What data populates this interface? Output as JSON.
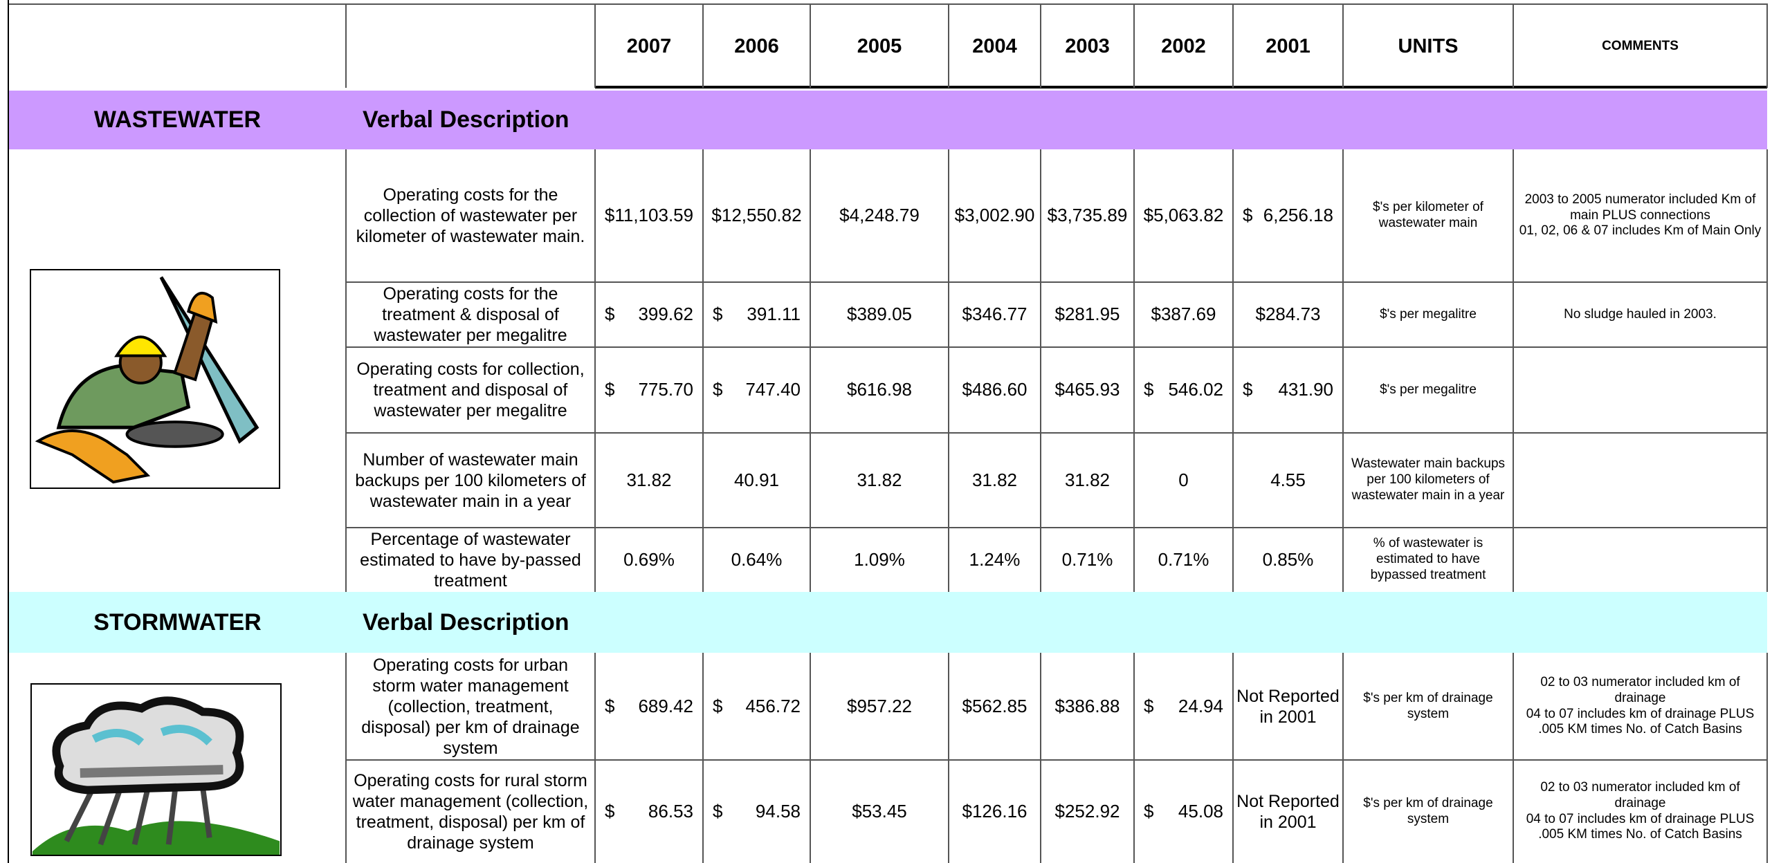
{
  "header": {
    "years": [
      "2007",
      "2006",
      "2005",
      "2004",
      "2003",
      "2002",
      "2001"
    ],
    "units": "UNITS",
    "comments": "COMMENTS"
  },
  "sections": [
    {
      "title": "WASTEWATER",
      "subtitle": "Verbal Description",
      "color": "#cc99ff",
      "rows": [
        {
          "description": "Operating costs for the collection of wastewater per kilometer of wastewater main.",
          "values": [
            "$11,103.59",
            "$12,550.82",
            "$4,248.79",
            "$3,002.90",
            "$3,735.89",
            "$5,063.82",
            {
              "symbol": "$",
              "amount": "6,256.18"
            }
          ],
          "units": "$'s per kilometer of wastewater main",
          "comments": "2003 to 2005 numerator included Km of main PLUS connections\n01, 02, 06 & 07 includes Km of Main Only"
        },
        {
          "description": "Operating costs for the treatment & disposal of wastewater per megalitre",
          "values": [
            {
              "symbol": "$",
              "amount": "399.62"
            },
            {
              "symbol": "$",
              "amount": "391.11"
            },
            "$389.05",
            "$346.77",
            "$281.95",
            "$387.69",
            "$284.73"
          ],
          "units": "$'s per megalitre",
          "comments": "No sludge hauled in 2003."
        },
        {
          "description": "Operating costs for collection, treatment and disposal of wastewater per megalitre",
          "values": [
            {
              "symbol": "$",
              "amount": "775.70"
            },
            {
              "symbol": "$",
              "amount": "747.40"
            },
            "$616.98",
            "$486.60",
            "$465.93",
            {
              "symbol": "$",
              "amount": "546.02"
            },
            {
              "symbol": "$",
              "amount": "431.90"
            }
          ],
          "units": "$'s per megalitre"
        },
        {
          "description": "Number of wastewater main backups per 100 kilometers of wastewater main in a year",
          "values": [
            31.82,
            40.91,
            31.82,
            31.82,
            31.82,
            0,
            4.55
          ],
          "units": "Wastewater main backups per 100 kilometers of wastewater main in a year"
        },
        {
          "description": "Percentage of wastewater estimated to have by-passed treatment",
          "values": [
            "0.69%",
            "0.64%",
            "1.09%",
            "1.24%",
            "0.71%",
            "0.71%",
            "0.85%"
          ],
          "units": "% of wastewater is estimated to have bypassed treatment"
        }
      ]
    },
    {
      "title": "STORMWATER",
      "subtitle": "Verbal Description",
      "color": "#ccffff",
      "rows": [
        {
          "description": "Operating costs for urban storm water management (collection, treatment, disposal) per km of drainage system",
          "values": [
            {
              "symbol": "$",
              "amount": "689.42"
            },
            {
              "symbol": "$",
              "amount": "456.72"
            },
            "$957.22",
            "$562.85",
            "$386.88",
            {
              "symbol": "$",
              "amount": "24.94"
            },
            "Not Reported in 2001"
          ],
          "units": "$'s per km of drainage system",
          "comments": "02 to 03 numerator included km of drainage\n04 to 07 includes km of drainage PLUS .005 KM times No. of Catch Basins"
        },
        {
          "description": "Operating costs for rural storm water management (collection, treatment, disposal) per km of drainage system",
          "values": [
            {
              "symbol": "$",
              "amount": "86.53"
            },
            {
              "symbol": "$",
              "amount": "94.58"
            },
            "$53.45",
            "$126.16",
            "$252.92",
            {
              "symbol": "$",
              "amount": "45.08"
            },
            "Not Reported in 2001"
          ],
          "units": "$'s per km of drainage system",
          "comments": "02 to 03 numerator included km of drainage\n04 to 07 includes km of drainage PLUS .005 KM times No. of Catch Basins"
        }
      ]
    }
  ]
}
